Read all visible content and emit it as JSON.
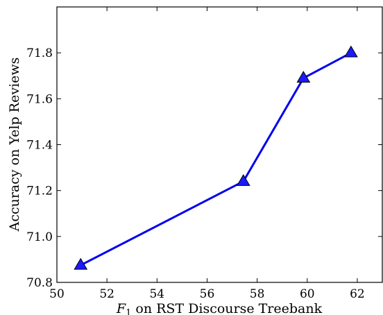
{
  "chart_data": {
    "type": "line",
    "xlabel_italic": "F",
    "xlabel_sub": "1",
    "xlabel_rest": " on RST Discourse Treebank",
    "ylabel": "Accuracy on Yelp Reviews",
    "xlim": [
      50,
      63
    ],
    "ylim": [
      70.8,
      72.0
    ],
    "xticks": [
      50,
      52,
      54,
      56,
      58,
      60,
      62
    ],
    "yticks": [
      70.8,
      71.0,
      71.2,
      71.4,
      71.6,
      71.8
    ],
    "xtick_labels": [
      "50",
      "52",
      "54",
      "56",
      "58",
      "60",
      "62"
    ],
    "ytick_labels": [
      "70.8",
      "71.0",
      "71.2",
      "71.4",
      "71.6",
      "71.8"
    ],
    "series": [
      {
        "x": [
          50.95,
          57.45,
          59.85,
          61.75
        ],
        "y": [
          70.875,
          71.24,
          71.69,
          71.8
        ],
        "color": "#0000ee",
        "marker": "triangle",
        "marker_color": "#1a1aff"
      }
    ],
    "grid": false,
    "legend": "none"
  }
}
